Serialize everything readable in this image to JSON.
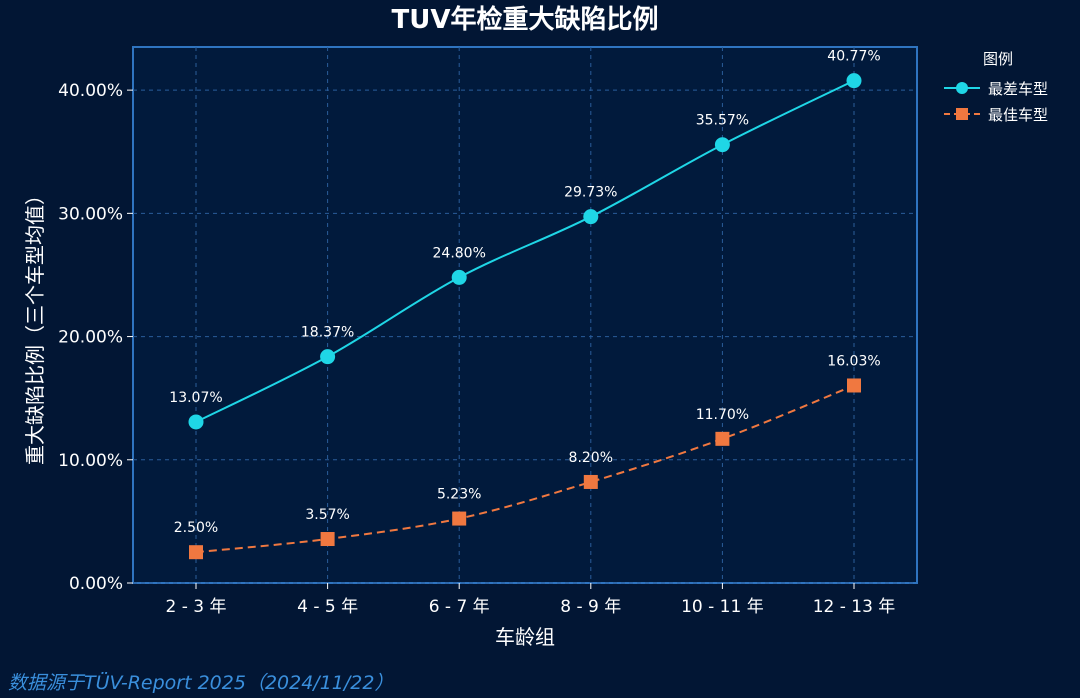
{
  "chart_data": {
    "type": "line",
    "title": "TUV年检重大缺陷比例",
    "xlabel": "车龄组",
    "ylabel": "重大缺陷比例（三个车型均值）",
    "categories": [
      "2 - 3 年",
      "4 - 5 年",
      "6 - 7 年",
      "8 - 9 年",
      "10 - 11 年",
      "12 - 13 年"
    ],
    "y_ticks": [
      "0.00%",
      "10.00%",
      "20.00%",
      "30.00%",
      "40.00%"
    ],
    "ylim": [
      0,
      43.5
    ],
    "grid": true,
    "legend_title": "图例",
    "legend_position": "top-right, outside plot",
    "series": [
      {
        "name": "最差车型",
        "values": [
          13.07,
          18.37,
          24.8,
          29.73,
          35.57,
          40.77
        ],
        "labels": [
          "13.07%",
          "18.37%",
          "24.80%",
          "29.73%",
          "35.57%",
          "40.77%"
        ],
        "color": "#1fd6e6",
        "marker": "circle",
        "line_style": "solid"
      },
      {
        "name": "最佳车型",
        "values": [
          2.5,
          3.57,
          5.23,
          8.2,
          11.7,
          16.03
        ],
        "labels": [
          "2.50%",
          "3.57%",
          "5.23%",
          "8.20%",
          "11.70%",
          "16.03%"
        ],
        "color": "#f07840",
        "marker": "square",
        "line_style": "dashed"
      }
    ],
    "source_note": "数据源于TÜV-Report 2025（2024/11/22）",
    "colors": {
      "background": "#021634",
      "plot_background": "#011a3c",
      "frame": "#2f74c0",
      "grid": "#2a5d9a"
    }
  }
}
